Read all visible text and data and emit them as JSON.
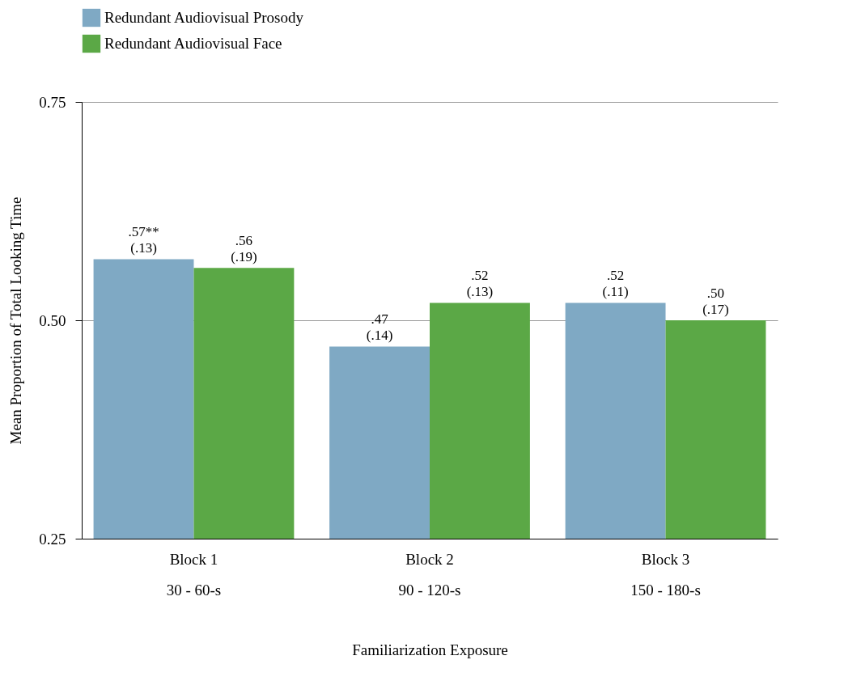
{
  "chart_data": {
    "type": "bar",
    "xlabel": "Familiarization Exposure",
    "ylabel": "Mean Proportion of Total Looking Time",
    "categories": [
      "Block 1\n30 - 60-s",
      "Block 2\n90 - 120-s",
      "Block 3\n150 - 180-s"
    ],
    "series": [
      {
        "name": "Redundant Audiovisual Prosody",
        "color": "#7fa9c4",
        "values": [
          0.57,
          0.47,
          0.52
        ],
        "value_labels": [
          ".57**\n(.13)",
          ".47\n(.14)",
          ".52\n(.11)"
        ]
      },
      {
        "name": "Redundant Audiovisual Face",
        "color": "#5ba846",
        "values": [
          0.56,
          0.52,
          0.5
        ],
        "value_labels": [
          ".56\n(.19)",
          ".52\n(.13)",
          ".50\n(.17)"
        ]
      }
    ],
    "ylim": [
      0.25,
      0.75
    ],
    "yticks": [
      {
        "value": 0.25,
        "label": "0.25"
      },
      {
        "value": 0.5,
        "label": "0.50"
      },
      {
        "value": 0.75,
        "label": "0.75"
      }
    ],
    "grid": "y",
    "legend": "top"
  }
}
